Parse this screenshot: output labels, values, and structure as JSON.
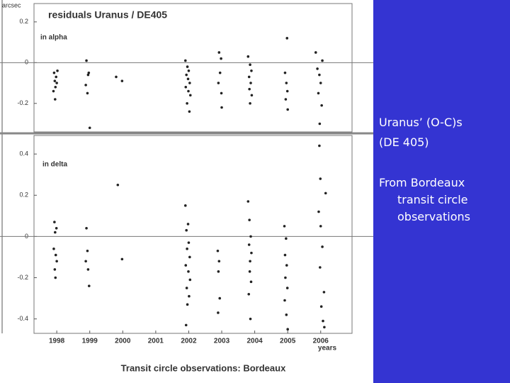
{
  "chart_data": [
    {
      "type": "scatter",
      "title": "residuals Uranus / DE405",
      "ylabel": "arcsec",
      "annotation": "in alpha",
      "color": "#222222",
      "zero_line": true,
      "xlim": [
        1997.31,
        2006.95
      ],
      "ylim": [
        -0.34,
        0.29
      ],
      "yticks": [
        0.2,
        0,
        -0.2
      ],
      "x": [
        1997.92,
        1997.98,
        1997.94,
        1998.0,
        1997.96,
        1997.9,
        1998.02,
        1997.95,
        1998.9,
        1998.95,
        1998.88,
        1998.93,
        1998.97,
        1999.0,
        1999.8,
        1999.98,
        2001.9,
        2001.96,
        2002.0,
        2001.93,
        2001.98,
        2002.03,
        2001.91,
        2001.99,
        2002.05,
        2001.95,
        2002.02,
        2002.92,
        2002.98,
        2002.95,
        2002.9,
        2002.99,
        2003.0,
        2003.8,
        2003.86,
        2003.9,
        2003.83,
        2003.88,
        2003.84,
        2003.91,
        2003.86,
        2004.98,
        2004.92,
        2004.96,
        2004.99,
        2004.94,
        2005.0,
        2005.85,
        2006.05,
        2005.9,
        2005.96,
        2006.0,
        2005.93,
        2006.03,
        2005.97
      ],
      "y": [
        -0.05,
        -0.07,
        -0.09,
        -0.1,
        -0.12,
        -0.14,
        -0.04,
        -0.18,
        0.01,
        -0.06,
        -0.11,
        -0.15,
        -0.05,
        -0.32,
        -0.07,
        -0.09,
        0.01,
        -0.02,
        -0.04,
        -0.06,
        -0.08,
        -0.1,
        -0.12,
        -0.14,
        -0.16,
        -0.2,
        -0.24,
        0.05,
        0.02,
        -0.05,
        -0.1,
        -0.15,
        -0.22,
        0.03,
        -0.01,
        -0.04,
        -0.07,
        -0.1,
        -0.13,
        -0.16,
        -0.2,
        0.12,
        -0.05,
        -0.1,
        -0.14,
        -0.18,
        -0.23,
        0.05,
        0.01,
        -0.03,
        -0.06,
        -0.1,
        -0.15,
        -0.21,
        -0.3
      ]
    },
    {
      "type": "scatter",
      "annotation": "in delta",
      "xlabel": "years",
      "color": "#222222",
      "zero_line": true,
      "xlim": [
        1997.31,
        2006.95
      ],
      "ylim": [
        -0.47,
        0.49
      ],
      "yticks": [
        0.4,
        0.2,
        0,
        -0.2,
        -0.4
      ],
      "xticks": [
        1998,
        1999,
        2000,
        2001,
        2002,
        2003,
        2004,
        2005,
        2006
      ],
      "x": [
        1997.93,
        1997.99,
        1997.95,
        1997.91,
        1997.97,
        1998.0,
        1997.94,
        1997.96,
        1998.9,
        1998.93,
        1998.88,
        1998.95,
        1998.98,
        1999.85,
        1999.98,
        2001.9,
        2001.98,
        2001.93,
        2002.0,
        2001.95,
        2002.03,
        2001.91,
        2001.99,
        2002.04,
        2001.94,
        2002.01,
        2001.96,
        2001.92,
        2002.88,
        2002.92,
        2002.9,
        2002.94,
        2002.89,
        2003.8,
        2003.84,
        2003.88,
        2003.83,
        2003.9,
        2003.86,
        2003.85,
        2003.89,
        2003.82,
        2003.87,
        2004.9,
        2004.95,
        2004.92,
        2004.97,
        2004.93,
        2004.99,
        2004.91,
        2004.96,
        2005.0,
        2005.96,
        2005.99,
        2006.15,
        2005.94,
        2006.0,
        2006.05,
        2005.98,
        2006.1,
        2006.02,
        2006.07,
        2006.11
      ],
      "y": [
        0.07,
        0.04,
        0.02,
        -0.06,
        -0.09,
        -0.12,
        -0.16,
        -0.2,
        0.04,
        -0.07,
        -0.12,
        -0.16,
        -0.24,
        0.25,
        -0.11,
        0.15,
        0.06,
        0.03,
        -0.03,
        -0.06,
        -0.1,
        -0.14,
        -0.17,
        -0.21,
        -0.25,
        -0.29,
        -0.33,
        -0.43,
        -0.07,
        -0.12,
        -0.17,
        -0.3,
        -0.37,
        0.17,
        0.08,
        0.0,
        -0.04,
        -0.08,
        -0.12,
        -0.17,
        -0.22,
        -0.28,
        -0.4,
        0.05,
        -0.01,
        -0.09,
        -0.14,
        -0.2,
        -0.25,
        -0.31,
        -0.38,
        -0.45,
        0.44,
        0.28,
        0.21,
        0.12,
        0.05,
        -0.05,
        -0.15,
        -0.27,
        -0.34,
        -0.41,
        -0.44
      ]
    }
  ],
  "caption": "Transit circle observations:  Bordeaux",
  "slide": {
    "heading": [
      "Uranus’ (O-C)s",
      "(DE 405)"
    ],
    "body": "From Bordeaux transit circle observations"
  }
}
